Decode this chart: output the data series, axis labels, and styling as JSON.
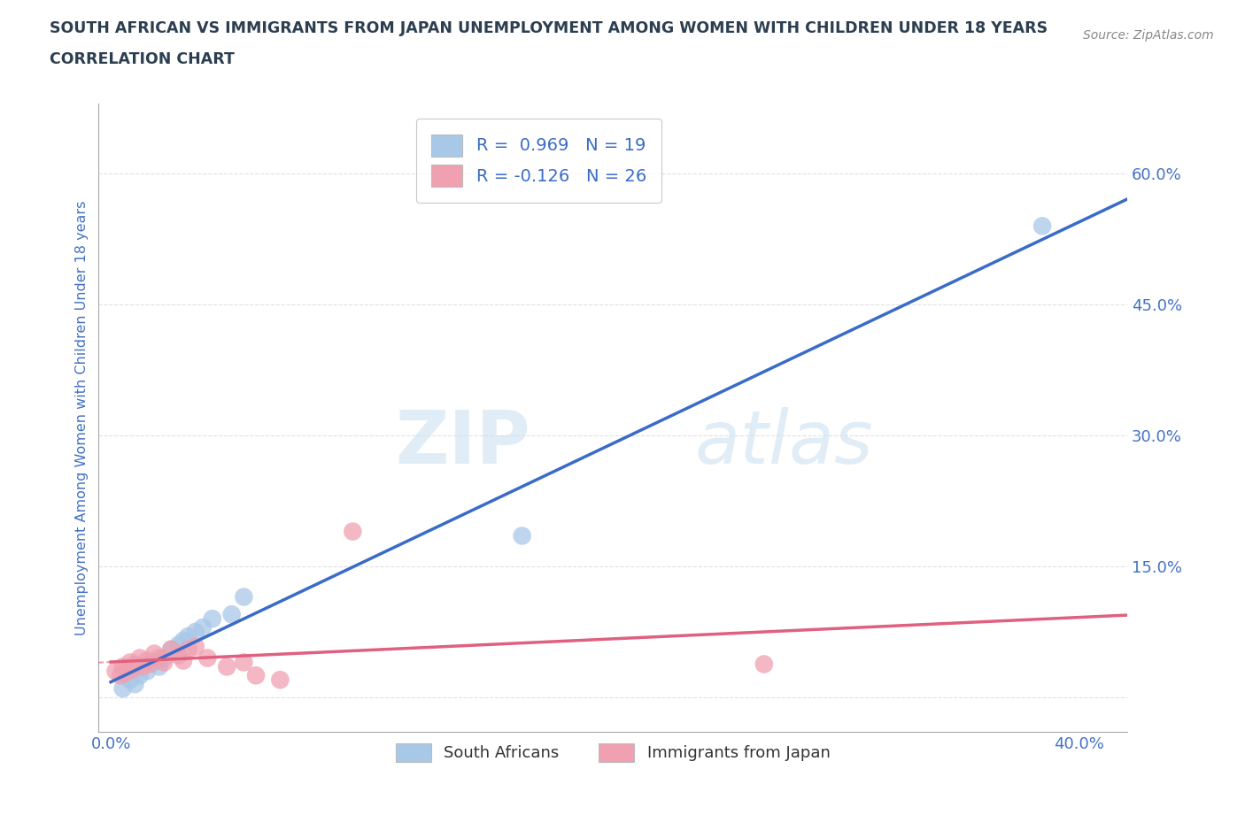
{
  "title_line1": "SOUTH AFRICAN VS IMMIGRANTS FROM JAPAN UNEMPLOYMENT AMONG WOMEN WITH CHILDREN UNDER 18 YEARS",
  "title_line2": "CORRELATION CHART",
  "source_text": "Source: ZipAtlas.com",
  "ylabel": "Unemployment Among Women with Children Under 18 years",
  "xlim": [
    -0.005,
    0.42
  ],
  "ylim": [
    -0.04,
    0.68
  ],
  "xticks": [
    0.0,
    0.1,
    0.2,
    0.3,
    0.4
  ],
  "xticklabels": [
    "0.0%",
    "",
    "",
    "",
    "40.0%"
  ],
  "yticks": [
    0.0,
    0.15,
    0.3,
    0.45,
    0.6
  ],
  "yticklabels": [
    "",
    "15.0%",
    "30.0%",
    "45.0%",
    "60.0%"
  ],
  "blue_R": 0.969,
  "blue_N": 19,
  "pink_R": -0.126,
  "pink_N": 26,
  "blue_color": "#a8c8e8",
  "blue_line_color": "#3a6bc8",
  "pink_color": "#f0a0b0",
  "pink_line_color": "#e06080",
  "watermark_zip": "ZIP",
  "watermark_atlas": "atlas",
  "legend_blue_label": "South Africans",
  "legend_pink_label": "Immigrants from Japan",
  "blue_scatter_x": [
    0.005,
    0.008,
    0.01,
    0.012,
    0.015,
    0.018,
    0.02,
    0.022,
    0.025,
    0.028,
    0.03,
    0.032,
    0.035,
    0.038,
    0.042,
    0.05,
    0.055,
    0.17,
    0.385
  ],
  "blue_scatter_y": [
    0.01,
    0.02,
    0.015,
    0.025,
    0.03,
    0.04,
    0.035,
    0.045,
    0.055,
    0.06,
    0.065,
    0.07,
    0.075,
    0.08,
    0.09,
    0.095,
    0.115,
    0.185,
    0.54
  ],
  "pink_scatter_x": [
    0.002,
    0.004,
    0.005,
    0.006,
    0.008,
    0.009,
    0.01,
    0.012,
    0.013,
    0.015,
    0.016,
    0.018,
    0.02,
    0.022,
    0.025,
    0.028,
    0.03,
    0.032,
    0.035,
    0.04,
    0.048,
    0.055,
    0.06,
    0.07,
    0.1,
    0.27
  ],
  "pink_scatter_y": [
    0.03,
    0.025,
    0.035,
    0.028,
    0.04,
    0.032,
    0.038,
    0.045,
    0.035,
    0.042,
    0.038,
    0.05,
    0.045,
    0.04,
    0.055,
    0.048,
    0.042,
    0.055,
    0.058,
    0.045,
    0.035,
    0.04,
    0.025,
    0.02,
    0.19,
    0.038
  ],
  "grid_color": "#cccccc",
  "bg_color": "#ffffff",
  "title_color": "#2c3e50",
  "tick_color": "#4472c4"
}
